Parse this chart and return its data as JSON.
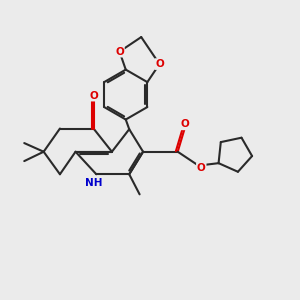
{
  "bg_color": "#ebebeb",
  "bond_color": "#2a2a2a",
  "oxygen_color": "#dd0000",
  "nitrogen_color": "#0000cc",
  "lw": 1.5,
  "dbo": 0.055,
  "figsize": [
    3.0,
    3.0
  ],
  "dpi": 100,
  "xlim": [
    0.0,
    8.5
  ],
  "ylim": [
    0.5,
    8.5
  ]
}
